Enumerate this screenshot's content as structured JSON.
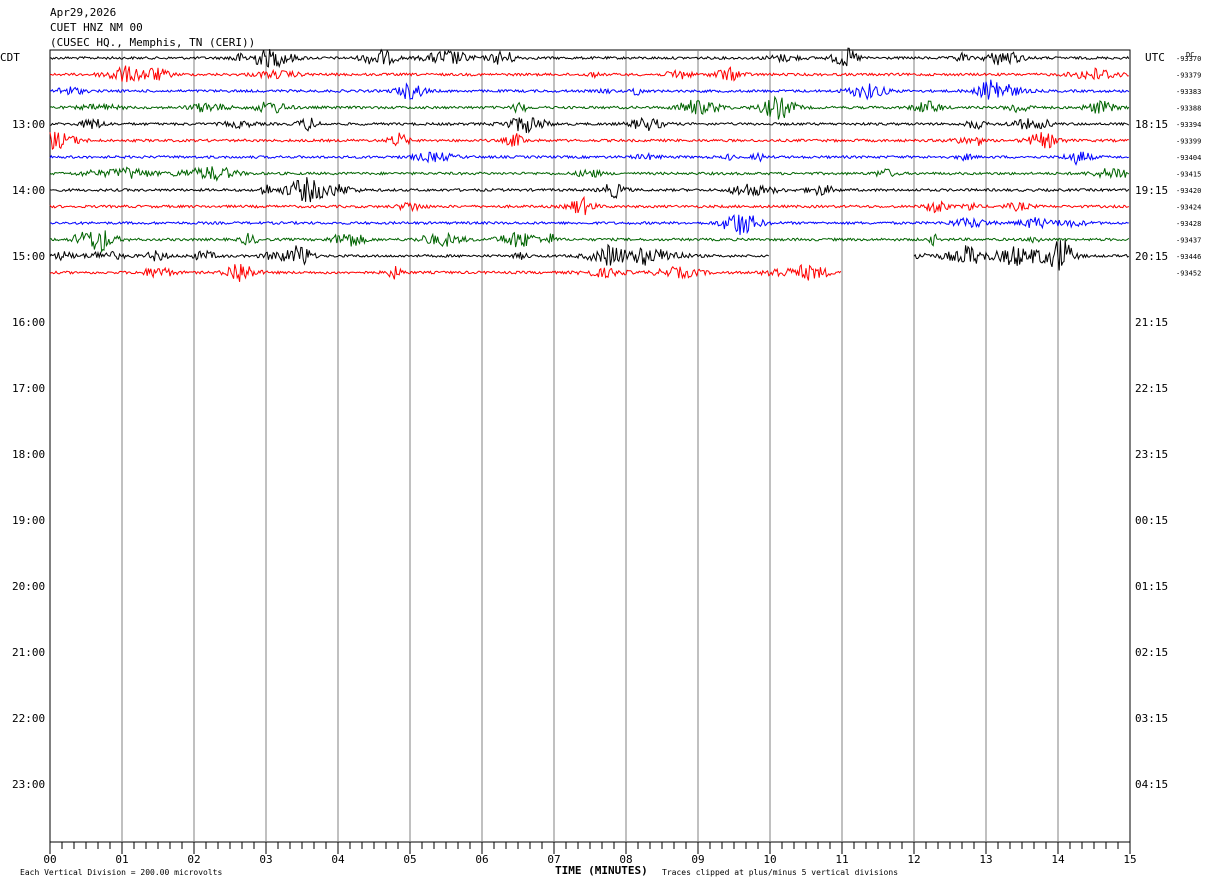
{
  "header": {
    "date": "Apr29,2026",
    "station": "CUET HNZ NM 00",
    "location": "(CUSEC HQ., Memphis, TN (CERI))"
  },
  "chart_data": {
    "type": "line",
    "title": "Apr29,2026 CUET HNZ NM 00",
    "xlabel": "TIME (MINUTES)",
    "x_ticks": [
      "00",
      "01",
      "02",
      "03",
      "04",
      "05",
      "06",
      "07",
      "08",
      "09",
      "10",
      "11",
      "12",
      "13",
      "14",
      "15"
    ],
    "xlim": [
      0,
      15
    ],
    "left_axis_label": "CDT",
    "right_axis_label": "UTC",
    "dc_label": "DC",
    "cdt_hours": [
      "13:00",
      "14:00",
      "15:00",
      "16:00",
      "17:00",
      "18:00",
      "19:00",
      "20:00",
      "21:00",
      "22:00",
      "23:00"
    ],
    "utc_hours": [
      "18:15",
      "19:15",
      "20:15",
      "21:15",
      "22:15",
      "23:15",
      "00:15",
      "01:15",
      "02:15",
      "03:15",
      "04:15"
    ],
    "trace_colors": [
      "#000000",
      "#ff0000",
      "#0000ff",
      "#006400"
    ],
    "dc_offsets": [
      "-93370",
      "-93379",
      "-93383",
      "-93388",
      "-93394",
      "-93399",
      "-93404",
      "-93415",
      "-93420",
      "-93424",
      "-93428",
      "-93437",
      "-93446",
      "-93452"
    ],
    "rows_per_hour": 4,
    "total_rows": 48,
    "trace_coverage": [
      [
        0,
        15
      ],
      [
        0,
        15
      ],
      [
        0,
        15
      ],
      [
        0,
        15
      ],
      [
        0,
        15
      ],
      [
        0,
        15
      ],
      [
        0,
        15
      ],
      [
        0,
        15
      ],
      [
        0,
        15
      ],
      [
        0,
        15
      ],
      [
        0,
        15
      ],
      [
        0,
        15
      ],
      [
        0,
        10
      ],
      [
        0,
        11
      ]
    ],
    "trace_coverage_extra": [
      [
        12,
        15
      ]
    ],
    "footer_left": "Each Vertical Division =  200.00 microvolts",
    "footer_right": "Traces clipped at plus/minus 5 vertical divisions"
  }
}
